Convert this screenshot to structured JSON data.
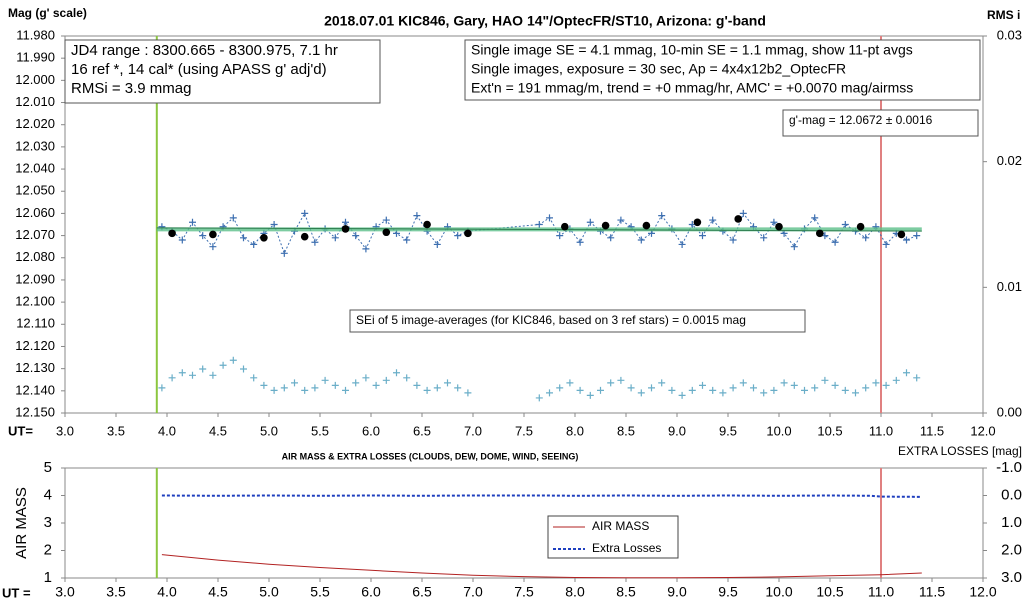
{
  "chart_data": [
    {
      "type": "scatter",
      "title": "2018.07.01  KIC846,  Gary, HAO 14\"/OptecFR/ST10,  Arizona:  g'-band",
      "y_label": "Mag (g' scale)",
      "y2_label": "RMS i",
      "x_label": "UT=",
      "xlim": [
        3.0,
        12.0
      ],
      "xticks": [
        {
          "value": 3.0,
          "label": "3.0"
        },
        {
          "value": 3.5,
          "label": "3.5"
        },
        {
          "value": 4.0,
          "label": "4.0"
        },
        {
          "value": 4.5,
          "label": "4.5"
        },
        {
          "value": 5.0,
          "label": "5.0"
        },
        {
          "value": 5.5,
          "label": "5.5"
        },
        {
          "value": 6.0,
          "label": "6.0"
        },
        {
          "value": 6.5,
          "label": "6.5"
        },
        {
          "value": 7.0,
          "label": "7.0"
        },
        {
          "value": 7.5,
          "label": "7.5"
        },
        {
          "value": 8.0,
          "label": "8.0"
        },
        {
          "value": 8.5,
          "label": "8.5"
        },
        {
          "value": 9.0,
          "label": "9.0"
        },
        {
          "value": 9.5,
          "label": "9.5"
        },
        {
          "value": 10.0,
          "label": "10.0"
        },
        {
          "value": 10.5,
          "label": "10.5"
        },
        {
          "value": 11.0,
          "label": "11.0"
        },
        {
          "value": 11.5,
          "label": "11.5"
        },
        {
          "value": 12.0,
          "label": "12.0"
        }
      ],
      "ylim": [
        12.15,
        11.98
      ],
      "yticks": [
        {
          "value": 11.98,
          "label": "11.980"
        },
        {
          "value": 11.99,
          "label": "11.990"
        },
        {
          "value": 12.0,
          "label": "12.000"
        },
        {
          "value": 12.01,
          "label": "12.010"
        },
        {
          "value": 12.02,
          "label": "12.020"
        },
        {
          "value": 12.03,
          "label": "12.030"
        },
        {
          "value": 12.04,
          "label": "12.040"
        },
        {
          "value": 12.05,
          "label": "12.050"
        },
        {
          "value": 12.06,
          "label": "12.060"
        },
        {
          "value": 12.07,
          "label": "12.070"
        },
        {
          "value": 12.08,
          "label": "12.080"
        },
        {
          "value": 12.09,
          "label": "12.090"
        },
        {
          "value": 12.1,
          "label": "12.100"
        },
        {
          "value": 12.11,
          "label": "12.110"
        },
        {
          "value": 12.12,
          "label": "12.120"
        },
        {
          "value": 12.13,
          "label": "12.130"
        },
        {
          "value": 12.14,
          "label": "12.140"
        },
        {
          "value": 12.15,
          "label": "12.150"
        }
      ],
      "y2lim": [
        0,
        0.03
      ],
      "y2ticks": [
        0.03,
        0.02,
        0.01,
        {
          "value": 0,
          "label": "0.00"
        }
      ],
      "vlines": [
        3.9,
        11.0
      ],
      "vline_colors": [
        "#8cc63f",
        "#e08080"
      ],
      "series": [
        {
          "color": "#3d6fb0",
          "marker": "plus",
          "line": "dash",
          "x": [
            3.95,
            4.05,
            4.15,
            4.25,
            4.35,
            4.45,
            4.55,
            4.65,
            4.75,
            4.85,
            4.95,
            5.05,
            5.15,
            5.25,
            5.35,
            5.45,
            5.55,
            5.65,
            5.75,
            5.85,
            5.95,
            6.05,
            6.15,
            6.25,
            6.35,
            6.45,
            6.55,
            6.65,
            6.75,
            6.85,
            6.95,
            7.65,
            7.75,
            7.85,
            7.95,
            8.05,
            8.15,
            8.25,
            8.35,
            8.45,
            8.55,
            8.65,
            8.75,
            8.85,
            8.95,
            9.05,
            9.15,
            9.25,
            9.35,
            9.45,
            9.55,
            9.65,
            9.75,
            9.85,
            9.95,
            10.05,
            10.15,
            10.25,
            10.35,
            10.45,
            10.55,
            10.65,
            10.75,
            10.85,
            10.95,
            11.05,
            11.15,
            11.25,
            11.35
          ],
          "values": [
            12.066,
            12.068,
            12.072,
            12.064,
            12.07,
            12.075,
            12.066,
            12.062,
            12.071,
            12.074,
            12.069,
            12.065,
            12.078,
            12.068,
            12.06,
            12.073,
            12.067,
            12.071,
            12.064,
            12.07,
            12.076,
            12.066,
            12.063,
            12.069,
            12.072,
            12.061,
            12.068,
            12.074,
            12.066,
            12.07,
            12.068,
            12.065,
            12.062,
            12.07,
            12.067,
            12.073,
            12.064,
            12.068,
            12.071,
            12.063,
            12.066,
            12.072,
            12.069,
            12.061,
            12.067,
            12.074,
            12.065,
            12.07,
            12.063,
            12.068,
            12.072,
            12.06,
            12.066,
            12.071,
            12.064,
            12.069,
            12.075,
            12.067,
            12.062,
            12.07,
            12.073,
            12.065,
            12.068,
            12.071,
            12.066,
            12.074,
            12.069,
            12.072,
            12.07
          ]
        },
        {
          "color": "#6aaec8",
          "marker": "plus",
          "line": "none",
          "axis": "y2",
          "x": [
            3.95,
            4.05,
            4.15,
            4.25,
            4.35,
            4.45,
            4.55,
            4.65,
            4.75,
            4.85,
            4.95,
            5.05,
            5.15,
            5.25,
            5.35,
            5.45,
            5.55,
            5.65,
            5.75,
            5.85,
            5.95,
            6.05,
            6.15,
            6.25,
            6.35,
            6.45,
            6.55,
            6.65,
            6.75,
            6.85,
            6.95,
            7.65,
            7.75,
            7.85,
            7.95,
            8.05,
            8.15,
            8.25,
            8.35,
            8.45,
            8.55,
            8.65,
            8.75,
            8.85,
            8.95,
            9.05,
            9.15,
            9.25,
            9.35,
            9.45,
            9.55,
            9.65,
            9.75,
            9.85,
            9.95,
            10.05,
            10.15,
            10.25,
            10.35,
            10.45,
            10.55,
            10.65,
            10.75,
            10.85,
            10.95,
            11.05,
            11.15,
            11.25,
            11.35
          ],
          "values": [
            0.002,
            0.0028,
            0.0032,
            0.003,
            0.0035,
            0.003,
            0.0038,
            0.0042,
            0.0035,
            0.0028,
            0.0022,
            0.0018,
            0.002,
            0.0024,
            0.0018,
            0.002,
            0.0026,
            0.0022,
            0.0018,
            0.0024,
            0.0028,
            0.0022,
            0.0026,
            0.0032,
            0.0028,
            0.0022,
            0.0018,
            0.002,
            0.0024,
            0.002,
            0.0016,
            0.0012,
            0.0016,
            0.002,
            0.0024,
            0.0018,
            0.0014,
            0.0018,
            0.0024,
            0.0026,
            0.002,
            0.0016,
            0.002,
            0.0024,
            0.0018,
            0.0014,
            0.0018,
            0.0022,
            0.0018,
            0.0016,
            0.002,
            0.0024,
            0.002,
            0.0016,
            0.0018,
            0.0024,
            0.0022,
            0.0018,
            0.002,
            0.0026,
            0.0022,
            0.0018,
            0.0016,
            0.002,
            0.0024,
            0.0022,
            0.0026,
            0.0032,
            0.0028
          ]
        },
        {
          "color": "#5cbf8a",
          "marker": "none",
          "line": "thick",
          "x": [
            3.9,
            11.4
          ],
          "values": [
            12.0672,
            12.0672
          ]
        },
        {
          "color": "#2e7d4f",
          "marker": "none",
          "line": "solid",
          "x": [
            3.9,
            11.4
          ],
          "values": [
            12.0665,
            12.068
          ]
        },
        {
          "color": "#000000",
          "marker": "dot",
          "line": "none",
          "x": [
            4.05,
            4.45,
            4.95,
            5.35,
            5.75,
            6.15,
            6.55,
            6.95,
            7.9,
            8.3,
            8.7,
            9.2,
            9.6,
            10.0,
            10.4,
            10.8,
            11.2
          ],
          "values": [
            12.069,
            12.0695,
            12.071,
            12.0705,
            12.067,
            12.0685,
            12.065,
            12.069,
            12.066,
            12.0655,
            12.0655,
            12.064,
            12.0625,
            12.066,
            12.069,
            12.066,
            12.0695
          ]
        }
      ],
      "annotations": [
        {
          "lines": [
            "JD4 range : 8300.665 - 8300.975, 7.1  hr",
            "16 ref *, 14 cal* (using APASS g' adj'd)",
            "RMSi = 3.9 mmag"
          ]
        },
        {
          "lines": [
            "Single image SE = 4.1 mmag, 10-min SE = 1.1 mmag, show  11-pt avgs",
            "Single images, exposure = 30 sec, Ap = 4x4x12b2_OptecFR",
            "Ext'n = 191 mmag/m, trend =  +0 mmag/hr, AMC' = +0.0070 mag/airmss"
          ]
        },
        {
          "lines": [
            "g'-mag = 12.0672 ± 0.0016"
          ]
        },
        {
          "lines": [
            "SEi of 5 image-averages (for KIC846, based on 3 ref stars) = 0.0015 mag"
          ]
        }
      ]
    },
    {
      "type": "line",
      "title": "AIR MASS & EXTRA LOSSES (CLOUDS, DEW, DOME, WIND, SEEING)",
      "y_label": "AIR MASS",
      "y2_label": "EXTRA LOSSES [mag]",
      "x_label": "UT =",
      "xlim": [
        3.0,
        12.0
      ],
      "xticks": [
        {
          "value": 3.0,
          "label": "3.0"
        },
        {
          "value": 3.5,
          "label": "3.5"
        },
        {
          "value": 4.0,
          "label": "4.0"
        },
        {
          "value": 4.5,
          "label": "4.5"
        },
        {
          "value": 5.0,
          "label": "5.0"
        },
        {
          "value": 5.5,
          "label": "5.5"
        },
        {
          "value": 6.0,
          "label": "6.0"
        },
        {
          "value": 6.5,
          "label": "6.5"
        },
        {
          "value": 7.0,
          "label": "7.0"
        },
        {
          "value": 7.5,
          "label": "7.5"
        },
        {
          "value": 8.0,
          "label": "8.0"
        },
        {
          "value": 8.5,
          "label": "8.5"
        },
        {
          "value": 9.0,
          "label": "9.0"
        },
        {
          "value": 9.5,
          "label": "9.5"
        },
        {
          "value": 10.0,
          "label": "10.0"
        },
        {
          "value": 10.5,
          "label": "10.5"
        },
        {
          "value": 11.0,
          "label": "11.0"
        },
        {
          "value": 11.5,
          "label": "11.5"
        },
        {
          "value": 12.0,
          "label": "12.0"
        }
      ],
      "ylim": [
        1,
        5
      ],
      "yticks": [
        1,
        2,
        3,
        4,
        5
      ],
      "y2lim": [
        3.0,
        -1.0
      ],
      "y2ticks": [
        {
          "value": -1.0,
          "label": "-1.0"
        },
        {
          "value": 0.0,
          "label": "0.0"
        },
        {
          "value": 1.0,
          "label": "1.0"
        },
        {
          "value": 2.0,
          "label": "2.0"
        },
        {
          "value": 3.0,
          "label": "3.0"
        }
      ],
      "vlines": [
        3.9,
        11.0
      ],
      "vline_colors": [
        "#8cc63f",
        "#e08080"
      ],
      "series": [
        {
          "name": "AIR MASS",
          "color": "#b22222",
          "marker": "none",
          "line": "solid",
          "x": [
            3.95,
            4.5,
            5.0,
            5.5,
            6.0,
            6.5,
            7.0,
            7.5,
            8.0,
            8.5,
            9.0,
            9.5,
            10.0,
            10.5,
            11.0,
            11.4
          ],
          "values": [
            1.85,
            1.65,
            1.5,
            1.38,
            1.28,
            1.18,
            1.1,
            1.05,
            1.02,
            1.01,
            1.01,
            1.02,
            1.04,
            1.08,
            1.12,
            1.18
          ]
        },
        {
          "name": "Extra Losses",
          "color": "#1f3fbf",
          "marker": "none",
          "line": "dash",
          "axis": "y2",
          "x": [
            3.95,
            4.5,
            5.0,
            5.5,
            6.0,
            6.5,
            7.0,
            7.7,
            8.0,
            8.5,
            9.0,
            9.5,
            10.0,
            10.5,
            10.9,
            11.0,
            11.4
          ],
          "values": [
            0.0,
            0.01,
            0.0,
            0.01,
            0.0,
            0.01,
            0.0,
            0.0,
            0.01,
            0.0,
            0.01,
            0.0,
            0.01,
            0.0,
            0.01,
            0.04,
            0.05
          ]
        }
      ]
    }
  ]
}
